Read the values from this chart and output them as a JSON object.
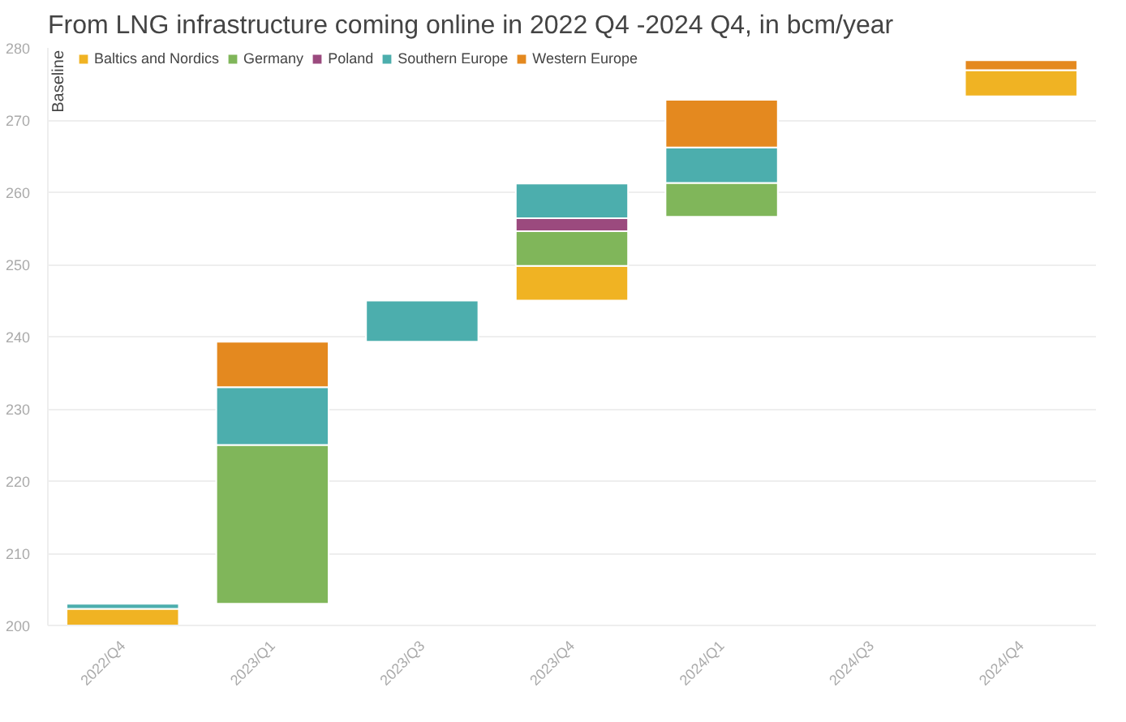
{
  "chart_data": {
    "type": "bar",
    "title": "From LNG infrastructure coming online in 2022 Q4 -2024 Q4, in bcm/year",
    "categories": [
      "2022/Q4",
      "2023/Q1",
      "2023/Q3",
      "2023/Q4",
      "2024/Q1",
      "2024/Q3",
      "2024/Q4"
    ],
    "legend_title": "Baseline",
    "series": [
      {
        "name": "Baltics and Nordics",
        "color": "#f0b323",
        "values": [
          2.3,
          null,
          null,
          4.8,
          null,
          null,
          3.6
        ],
        "base": [
          200,
          null,
          null,
          245,
          null,
          null,
          273.3
        ]
      },
      {
        "name": "Germany",
        "color": "#80b65a",
        "values": [
          null,
          22,
          null,
          4.8,
          4.7,
          null,
          null
        ],
        "base": [
          null,
          203,
          null,
          249.8,
          256.6,
          null,
          null
        ]
      },
      {
        "name": "Poland",
        "color": "#9b4a7e",
        "values": [
          null,
          null,
          null,
          1.8,
          null,
          null,
          null
        ],
        "base": [
          null,
          null,
          null,
          254.6,
          null,
          null,
          null
        ]
      },
      {
        "name": "Southern Europe",
        "color": "#4caead",
        "values": [
          0.7,
          8,
          5.7,
          4.8,
          4.9,
          null,
          null
        ],
        "base": [
          202.3,
          225,
          239.3,
          256.4,
          261.3,
          null,
          null
        ]
      },
      {
        "name": "Western Europe",
        "color": "#e4891f",
        "values": [
          null,
          6.3,
          null,
          null,
          6.6,
          null,
          1.4
        ],
        "base": [
          null,
          233,
          null,
          null,
          266.2,
          null,
          276.9
        ]
      }
    ],
    "ylim": [
      200,
      280
    ],
    "yticks": [
      200,
      210,
      220,
      230,
      240,
      250,
      260,
      270,
      280
    ],
    "grid": "y",
    "legend": "top left"
  }
}
